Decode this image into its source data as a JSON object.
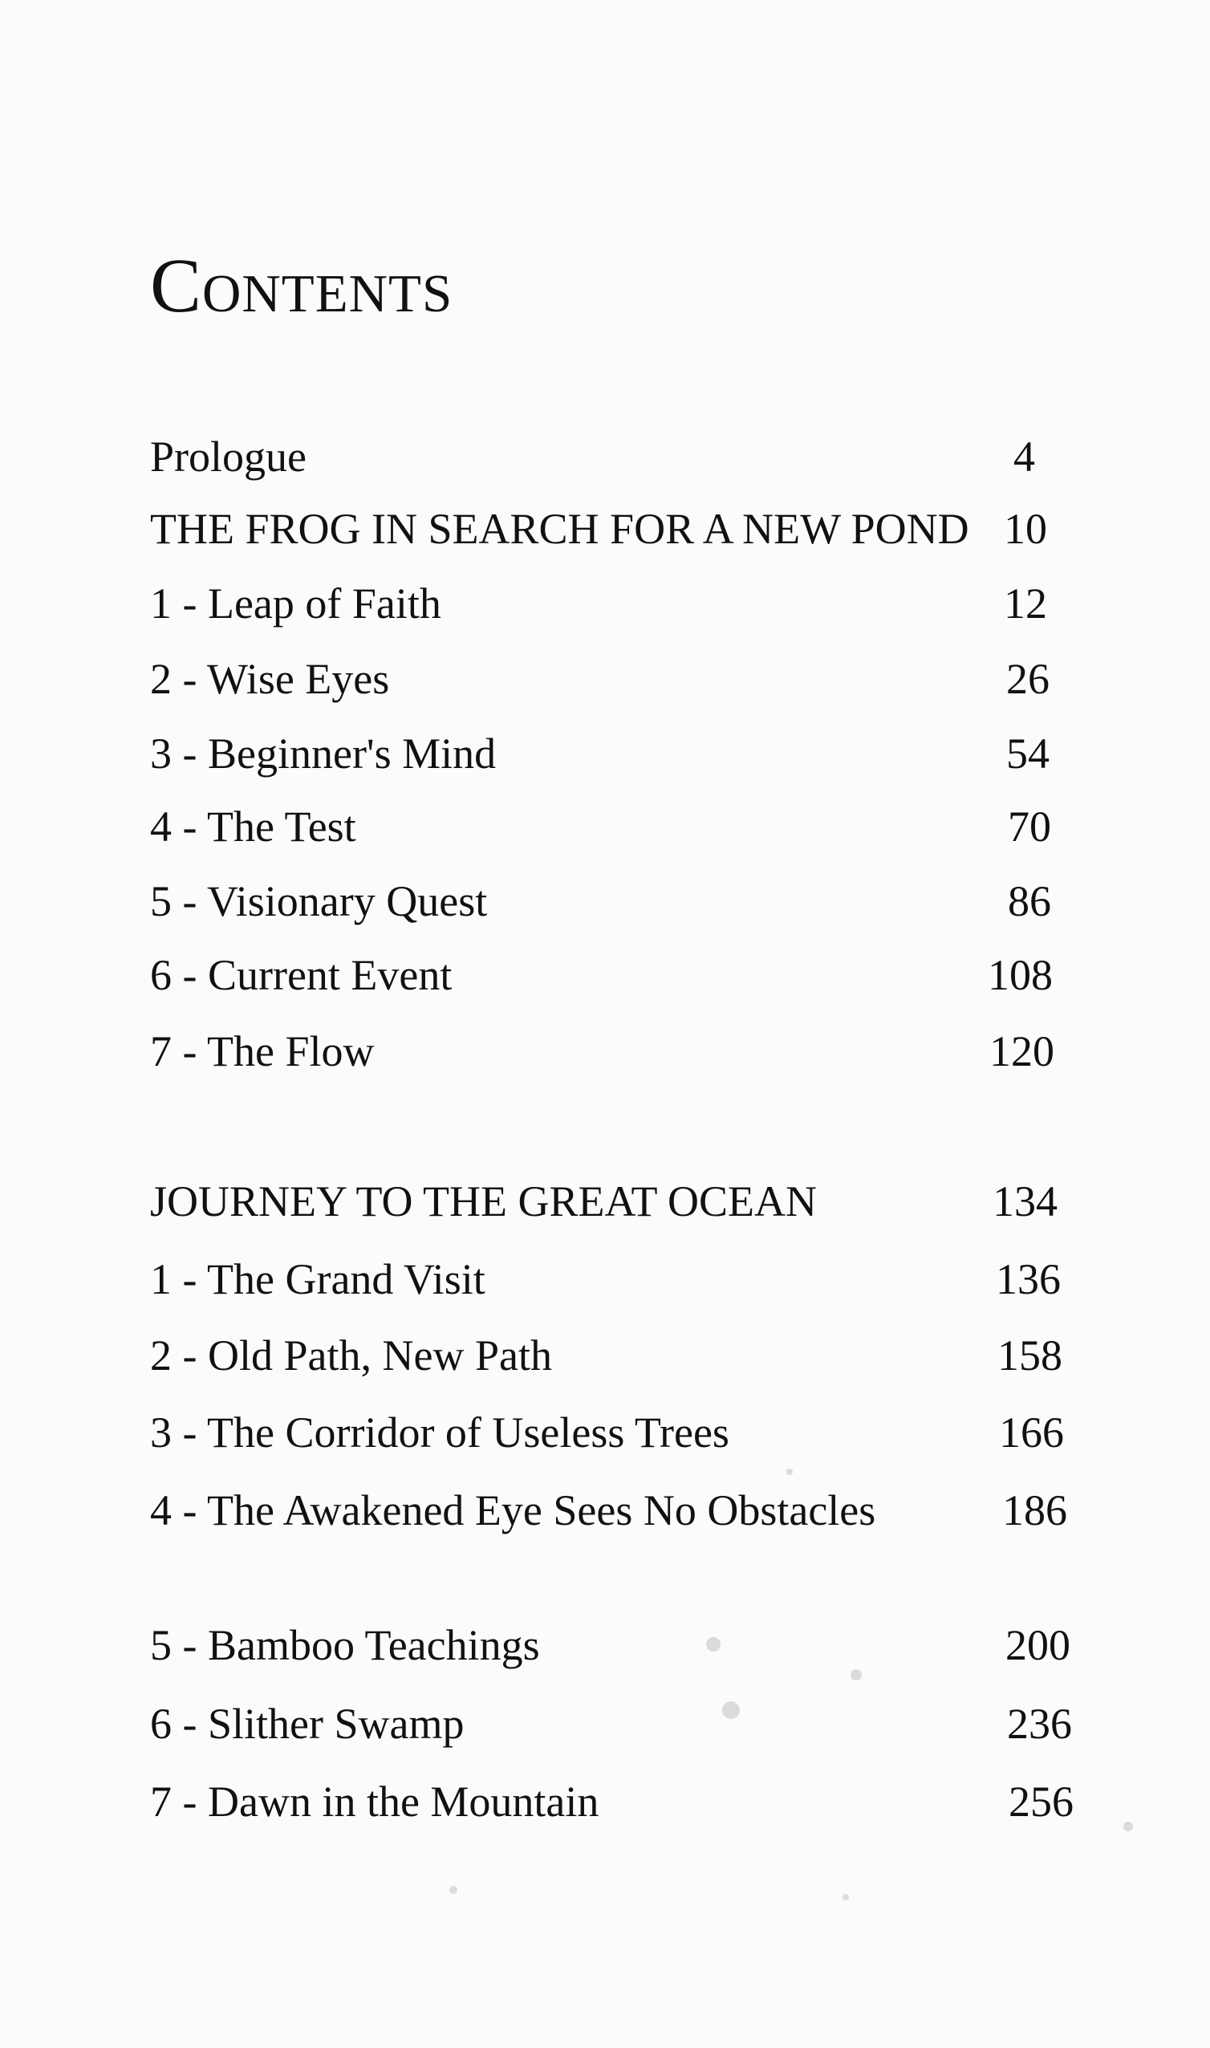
{
  "title": "Contents",
  "entries": [
    {
      "label": "Prologue",
      "page": "4"
    },
    {
      "label": "THE FROG IN SEARCH FOR A NEW POND",
      "page": "10"
    },
    {
      "label": "1 - Leap of Faith",
      "page": "12"
    },
    {
      "label": "2 - Wise Eyes",
      "page": "26"
    },
    {
      "label": "3 - Beginner's Mind",
      "page": "54"
    },
    {
      "label": "4 - The Test",
      "page": "70"
    },
    {
      "label": "5 - Visionary Quest",
      "page": "86"
    },
    {
      "label": "6 - Current Event",
      "page": "108"
    },
    {
      "label": "7 - The Flow",
      "page": "120"
    },
    {
      "label": "JOURNEY TO THE GREAT OCEAN",
      "page": "134"
    },
    {
      "label": "1 - The Grand Visit",
      "page": "136"
    },
    {
      "label": "2 - Old Path, New Path",
      "page": "158"
    },
    {
      "label": "3 - The Corridor of Useless Trees",
      "page": "166"
    },
    {
      "label": "4 - The Awakened Eye Sees No Obstacles",
      "page": "186"
    },
    {
      "label": "5 - Bamboo Teachings",
      "page": "200"
    },
    {
      "label": "6 - Slither Swamp",
      "page": "236"
    },
    {
      "label": "7 - Dawn in the Mountain",
      "page": "256"
    }
  ]
}
